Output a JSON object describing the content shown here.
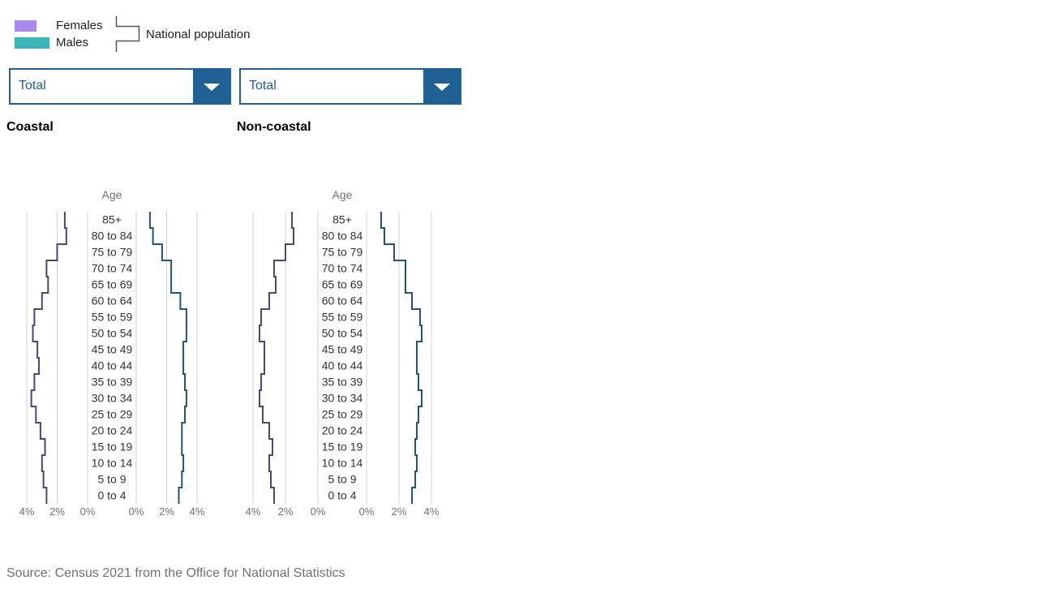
{
  "legend": {
    "females_label": "Females",
    "males_label": "Males",
    "national_label": "National population"
  },
  "colors": {
    "females": "#a98bf0",
    "males": "#3cb4b8",
    "national_females": "#4b4674",
    "national_males": "#24566a",
    "dropdown": "#206095",
    "grid": "#d0d0d0",
    "axis_text": "#707070"
  },
  "dropdowns": [
    {
      "value": "Total"
    },
    {
      "value": "Total"
    }
  ],
  "source": "Source: Census 2021 from the Office for National Statistics",
  "chart_data": [
    {
      "type": "population pyramid",
      "title": "Coastal",
      "axis_title": "Age",
      "categories": [
        "0 to 4",
        "5 to 9",
        "10 to 14",
        "15 to 19",
        "20 to 24",
        "25 to 29",
        "30 to 34",
        "35 to 39",
        "40 to 44",
        "45 to 49",
        "50 to 54",
        "55 to 59",
        "60 to 64",
        "65 to 69",
        "70 to 74",
        "75 to 79",
        "80 to 84",
        "85+"
      ],
      "x_ticks_left": [
        "4%",
        "2%",
        "0%"
      ],
      "x_ticks_right": [
        "0%",
        "2%",
        "4%"
      ],
      "xlim": [
        0,
        4
      ],
      "series": [
        {
          "name": "Females",
          "values": [
            2.7,
            2.9,
            3.0,
            2.8,
            3.1,
            3.4,
            3.7,
            3.5,
            3.2,
            3.3,
            3.6,
            3.5,
            3.0,
            2.6,
            2.7,
            2.0,
            1.4,
            1.5
          ]
        },
        {
          "name": "Males",
          "values": [
            2.8,
            3.0,
            3.1,
            3.0,
            3.0,
            3.2,
            3.3,
            3.2,
            3.1,
            3.1,
            3.3,
            3.3,
            2.9,
            2.3,
            2.3,
            1.7,
            1.1,
            0.9
          ]
        }
      ]
    },
    {
      "type": "population pyramid",
      "title": "Non-coastal",
      "axis_title": "Age",
      "categories": [
        "0 to 4",
        "5 to 9",
        "10 to 14",
        "15 to 19",
        "20 to 24",
        "25 to 29",
        "30 to 34",
        "35 to 39",
        "40 to 44",
        "45 to 49",
        "50 to 54",
        "55 to 59",
        "60 to 64",
        "65 to 69",
        "70 to 74",
        "75 to 79",
        "80 to 84",
        "85+"
      ],
      "x_ticks_left": [
        "4%",
        "2%",
        "0%"
      ],
      "x_ticks_right": [
        "0%",
        "2%",
        "4%"
      ],
      "xlim": [
        0,
        4
      ],
      "series": [
        {
          "name": "Females",
          "values": [
            2.7,
            2.9,
            3.0,
            2.8,
            3.0,
            3.4,
            3.6,
            3.5,
            3.3,
            3.3,
            3.6,
            3.5,
            3.0,
            2.6,
            2.7,
            2.0,
            1.5,
            1.6
          ]
        },
        {
          "name": "Males",
          "values": [
            2.8,
            3.0,
            3.1,
            3.0,
            3.1,
            3.2,
            3.4,
            3.2,
            3.1,
            3.1,
            3.4,
            3.3,
            2.8,
            2.4,
            2.4,
            1.7,
            1.1,
            0.9
          ]
        }
      ]
    }
  ]
}
